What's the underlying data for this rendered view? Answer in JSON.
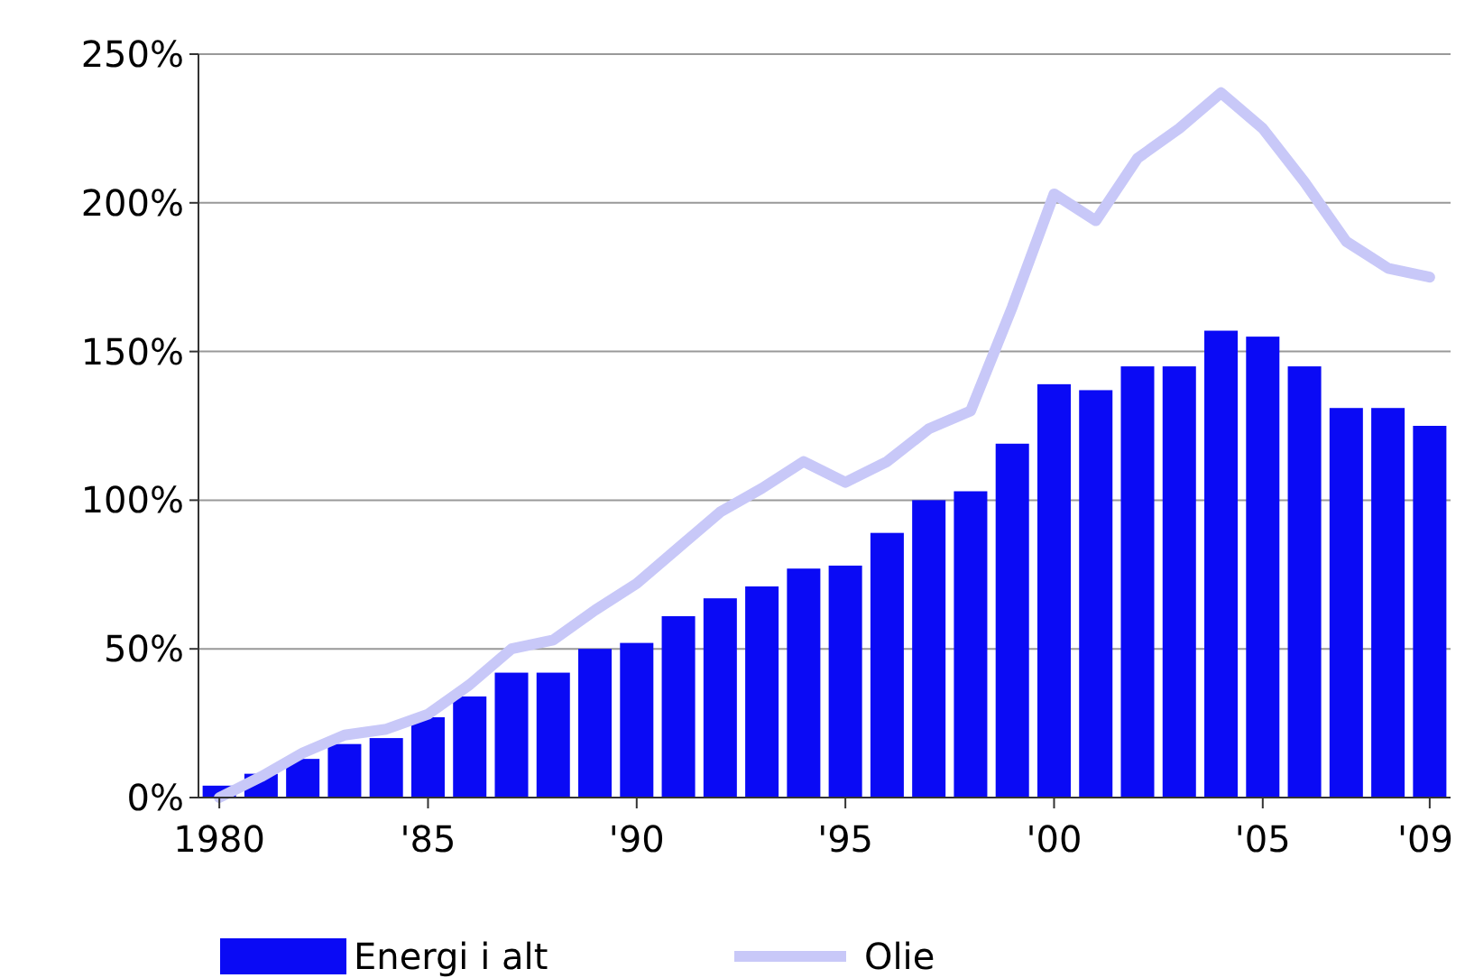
{
  "chart_data": {
    "type": "bar",
    "categories": [
      "1980",
      null,
      null,
      null,
      null,
      "'85",
      null,
      null,
      null,
      null,
      "'90",
      null,
      null,
      null,
      null,
      "'95",
      null,
      null,
      null,
      null,
      "'00",
      null,
      null,
      null,
      null,
      "'05",
      null,
      null,
      null,
      "'09"
    ],
    "series": [
      {
        "name": "Energi i alt",
        "color": "#0a0af5",
        "values": [
          4,
          8,
          13,
          18,
          20,
          27,
          34,
          42,
          42,
          50,
          52,
          61,
          67,
          71,
          77,
          78,
          89,
          100,
          103,
          119,
          139,
          137,
          145,
          145,
          157,
          155,
          145,
          131,
          131,
          125
        ]
      },
      {
        "name": "Olie",
        "type": "line",
        "color": "#c8c8f8",
        "values": [
          0,
          7,
          15,
          21,
          23,
          28,
          38,
          50,
          53,
          63,
          72,
          84,
          96,
          104,
          113,
          106,
          113,
          124,
          130,
          165,
          203,
          194,
          215,
          225,
          237,
          225,
          207,
          187,
          178,
          175
        ]
      }
    ],
    "ylim": [
      0,
      250
    ],
    "yticks": [
      {
        "value": 0,
        "label": "0%"
      },
      {
        "value": 50,
        "label": "50%"
      },
      {
        "value": 100,
        "label": "100%"
      },
      {
        "value": 150,
        "label": "150%"
      },
      {
        "value": 200,
        "label": "200%"
      },
      {
        "value": 250,
        "label": "250%"
      }
    ],
    "grid": "y",
    "legend": "bottom",
    "marker": "none",
    "line_style": "solid"
  }
}
